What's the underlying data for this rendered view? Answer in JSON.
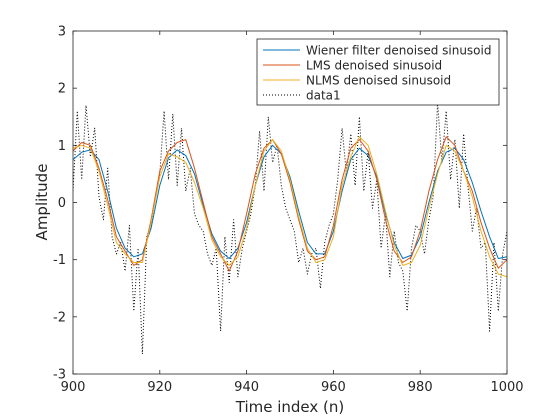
{
  "chart_data": {
    "type": "line",
    "xlabel": "Time index (n)",
    "ylabel": "Amplitude",
    "xlim": [
      900,
      1000
    ],
    "ylim": [
      -3,
      3
    ],
    "xticks": [
      900,
      920,
      940,
      960,
      980,
      1000
    ],
    "yticks": [
      -3,
      -2,
      -1,
      0,
      1,
      2,
      3
    ],
    "grid": false,
    "legend_position": "top-right",
    "series": [
      {
        "name": "Wiener filter denoised sinusoid",
        "color": "#0072BD",
        "style": "solid",
        "x": [
          900,
          902,
          904,
          906,
          908,
          910,
          912,
          914,
          916,
          918,
          920,
          922,
          924,
          926,
          928,
          930,
          932,
          934,
          936,
          938,
          940,
          942,
          944,
          946,
          948,
          950,
          952,
          954,
          956,
          958,
          960,
          962,
          964,
          966,
          968,
          970,
          972,
          974,
          976,
          978,
          980,
          982,
          984,
          986,
          988,
          990,
          992,
          994,
          996,
          998,
          1000
        ],
        "values": [
          0.75,
          0.88,
          0.92,
          0.75,
          0.2,
          -0.45,
          -0.8,
          -0.95,
          -0.9,
          -0.45,
          0.3,
          0.78,
          0.92,
          0.82,
          0.5,
          -0.05,
          -0.55,
          -0.85,
          -0.98,
          -0.8,
          -0.35,
          0.3,
          0.8,
          1.0,
          0.85,
          0.45,
          -0.15,
          -0.7,
          -0.9,
          -0.9,
          -0.5,
          0.2,
          0.75,
          0.95,
          0.82,
          0.45,
          -0.2,
          -0.7,
          -0.98,
          -0.92,
          -0.6,
          0.0,
          0.55,
          0.88,
          0.95,
          0.75,
          0.35,
          -0.15,
          -0.6,
          -0.98,
          -0.95
        ]
      },
      {
        "name": "LMS denoised sinusoid",
        "color": "#D95319",
        "style": "solid",
        "x": [
          900,
          902,
          904,
          906,
          908,
          910,
          912,
          914,
          916,
          918,
          920,
          922,
          924,
          926,
          928,
          930,
          932,
          934,
          936,
          938,
          940,
          942,
          944,
          946,
          948,
          950,
          952,
          954,
          956,
          958,
          960,
          962,
          964,
          966,
          968,
          970,
          972,
          974,
          976,
          978,
          980,
          982,
          984,
          986,
          988,
          990,
          992,
          994,
          996,
          998,
          1000
        ],
        "values": [
          0.9,
          1.05,
          1.0,
          0.6,
          0.05,
          -0.6,
          -0.85,
          -1.1,
          -1.0,
          -0.3,
          0.55,
          0.9,
          1.05,
          1.1,
          0.6,
          0.0,
          -0.6,
          -0.9,
          -1.2,
          -0.85,
          -0.2,
          0.5,
          0.95,
          1.1,
          0.85,
          0.35,
          -0.3,
          -0.85,
          -1.0,
          -0.95,
          -0.4,
          0.4,
          0.95,
          1.1,
          0.9,
          0.4,
          -0.3,
          -0.85,
          -1.05,
          -0.95,
          -0.5,
          0.2,
          0.75,
          1.15,
          1.0,
          0.55,
          0.2,
          -0.35,
          -0.8,
          -1.15,
          -1.0
        ]
      },
      {
        "name": "NLMS denoised sinusoid",
        "color": "#EDB120",
        "style": "solid",
        "x": [
          900,
          902,
          904,
          906,
          908,
          910,
          912,
          914,
          916,
          918,
          920,
          922,
          924,
          926,
          928,
          930,
          932,
          934,
          936,
          938,
          940,
          942,
          944,
          946,
          948,
          950,
          952,
          954,
          956,
          958,
          960,
          962,
          964,
          966,
          968,
          970,
          972,
          974,
          976,
          978,
          980,
          982,
          984,
          986,
          988,
          990,
          992,
          994,
          996,
          998,
          1000
        ],
        "values": [
          0.95,
          1.0,
          0.95,
          0.55,
          -0.05,
          -0.7,
          -0.9,
          -1.05,
          -1.05,
          -0.35,
          0.45,
          0.85,
          0.8,
          0.7,
          0.35,
          -0.1,
          -0.65,
          -0.95,
          -1.1,
          -0.95,
          -0.45,
          0.3,
          0.9,
          1.1,
          0.9,
          0.4,
          -0.25,
          -0.8,
          -1.05,
          -1.0,
          -0.6,
          0.3,
          0.8,
          1.15,
          1.0,
          0.5,
          -0.15,
          -0.75,
          -1.1,
          -1.05,
          -0.75,
          -0.1,
          0.5,
          1.0,
          0.9,
          0.55,
          0.1,
          -0.5,
          -0.95,
          -1.25,
          -1.3
        ]
      },
      {
        "name": "data1",
        "color": "#000000",
        "style": "dotted",
        "x": [
          900,
          901,
          902,
          903,
          904,
          905,
          906,
          907,
          908,
          909,
          910,
          911,
          912,
          913,
          914,
          915,
          916,
          917,
          918,
          919,
          920,
          921,
          922,
          923,
          924,
          925,
          926,
          927,
          928,
          929,
          930,
          931,
          932,
          933,
          934,
          935,
          936,
          937,
          938,
          939,
          940,
          941,
          942,
          943,
          944,
          945,
          946,
          947,
          948,
          949,
          950,
          951,
          952,
          953,
          954,
          955,
          956,
          957,
          958,
          959,
          960,
          961,
          962,
          963,
          964,
          965,
          966,
          967,
          968,
          969,
          970,
          971,
          972,
          973,
          974,
          975,
          976,
          977,
          978,
          979,
          980,
          981,
          982,
          983,
          984,
          985,
          986,
          987,
          988,
          989,
          990,
          991,
          992,
          993,
          994,
          995,
          996,
          997,
          998,
          999,
          1000
        ],
        "values": [
          0.2,
          1.6,
          0.4,
          1.7,
          0.8,
          1.3,
          0.1,
          -0.3,
          0.6,
          -0.6,
          -0.9,
          -0.7,
          -1.2,
          -0.4,
          -1.9,
          -0.8,
          -2.65,
          -0.6,
          -0.4,
          0.1,
          0.5,
          1.6,
          0.4,
          1.55,
          0.3,
          1.3,
          0.2,
          0.6,
          -0.2,
          -0.4,
          -0.5,
          -0.9,
          -1.1,
          -0.8,
          -2.25,
          -0.6,
          -1.4,
          -0.3,
          -1.3,
          -0.8,
          -0.5,
          -0.2,
          0.3,
          1.25,
          0.2,
          1.5,
          0.7,
          1.0,
          0.3,
          -0.1,
          -0.3,
          -0.5,
          -1.05,
          -0.8,
          -1.25,
          -0.9,
          -0.8,
          -1.5,
          -0.7,
          -0.4,
          -0.2,
          0.4,
          1.3,
          0.5,
          1.2,
          0.3,
          1.5,
          0.2,
          0.9,
          -0.1,
          0.4,
          -0.8,
          -0.2,
          -1.3,
          -0.5,
          -1.05,
          -1.2,
          -1.9,
          -0.8,
          -0.4,
          -0.5,
          -0.9,
          -0.3,
          0.1,
          1.75,
          0.7,
          1.6,
          0.4,
          1.1,
          -0.1,
          1.2,
          0.3,
          -0.5,
          -0.1,
          -0.8,
          -0.7,
          -2.25,
          -0.7,
          -1.9,
          -0.9,
          -0.5
        ]
      }
    ]
  }
}
